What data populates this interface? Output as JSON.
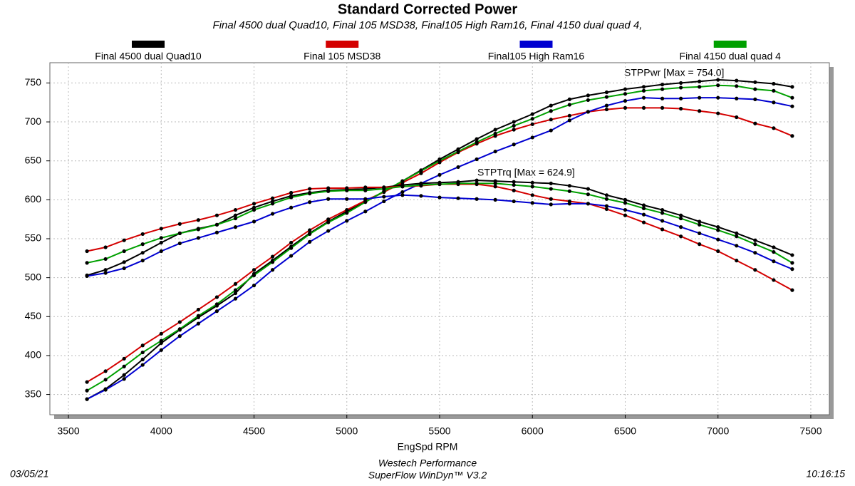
{
  "chart_data": {
    "type": "line",
    "title": "Standard Corrected Power",
    "subtitle": "Final 4500 dual Quad10, Final 105 MSD38, Final105 High Ram16, Final 4150 dual quad 4,",
    "x_label": "EngSpd RPM",
    "annotations": [
      "STPPwr [Max = 754.0]",
      "STPTrq [Max = 624.9]"
    ],
    "footer": {
      "left": "03/05/21",
      "center": [
        "Westech Performance",
        "SuperFlow WinDyn™ V3.2"
      ],
      "right": "10:16:15"
    },
    "grid": true,
    "xlim": [
      3400,
      7600
    ],
    "xticks": [
      3500,
      4000,
      4500,
      5000,
      5500,
      6000,
      6500,
      7000,
      7500
    ],
    "ylim": [
      324,
      776
    ],
    "yticks": [
      350,
      400,
      450,
      500,
      550,
      600,
      650,
      700,
      750
    ],
    "x": [
      3600,
      3700,
      3800,
      3900,
      4000,
      4100,
      4200,
      4300,
      4400,
      4500,
      4600,
      4700,
      4800,
      4900,
      5000,
      5100,
      5200,
      5300,
      5400,
      5500,
      5600,
      5700,
      5800,
      5900,
      6000,
      6100,
      6200,
      6300,
      6400,
      6500,
      6600,
      6700,
      6800,
      6900,
      7000,
      7100,
      7200,
      7300,
      7400
    ],
    "series": [
      {
        "name": "Final 4500 dual Quad10",
        "color": "#000000",
        "power": [
          344,
          357,
          375,
          395,
          416,
          433,
          449,
          464,
          480,
          505,
          522,
          540,
          557,
          572,
          585,
          598,
          610,
          624,
          638,
          652,
          665,
          678,
          690,
          700,
          710,
          721,
          729,
          734,
          738,
          742,
          745,
          748,
          750,
          752,
          754,
          753,
          751,
          749,
          745
        ],
        "torque": [
          503,
          510,
          520,
          532,
          545,
          557,
          563,
          568,
          580,
          590,
          598,
          605,
          609,
          612,
          613,
          614,
          616,
          619,
          621,
          622,
          623,
          624.9,
          624,
          623,
          622,
          621,
          618,
          614,
          606,
          600,
          593,
          587,
          580,
          572,
          565,
          557,
          548,
          539,
          529
        ]
      },
      {
        "name": "Final 105 MSD38",
        "color": "#d40000",
        "power": [
          366,
          380,
          396,
          413,
          428,
          443,
          459,
          475,
          492,
          510,
          527,
          545,
          561,
          575,
          587,
          599,
          610,
          622,
          634,
          648,
          661,
          672,
          682,
          690,
          697,
          703,
          708,
          713,
          716,
          718,
          718,
          718,
          717,
          714,
          711,
          706,
          698,
          692,
          682
        ],
        "torque": [
          534,
          539,
          548,
          556,
          563,
          569,
          574,
          580,
          587,
          595,
          602,
          609,
          614,
          615,
          615,
          616,
          616,
          617,
          618,
          620,
          620,
          620,
          617,
          612,
          606,
          601,
          598,
          595,
          588,
          580,
          571,
          562,
          553,
          543,
          534,
          522,
          510,
          497,
          484
        ]
      },
      {
        "name": "Final105 High Ram16",
        "color": "#0000d0",
        "power": [
          344,
          356,
          370,
          388,
          407,
          425,
          441,
          457,
          473,
          490,
          510,
          528,
          546,
          560,
          573,
          585,
          598,
          610,
          621,
          632,
          642,
          652,
          662,
          671,
          680,
          689,
          702,
          713,
          721,
          727,
          731,
          730,
          730,
          731,
          731,
          730,
          729,
          725,
          720
        ],
        "torque": [
          502,
          506,
          512,
          522,
          534,
          544,
          551,
          558,
          565,
          572,
          582,
          590,
          597,
          601,
          601,
          601,
          604,
          606,
          605,
          603,
          602,
          601,
          600,
          598,
          596,
          594,
          595,
          595,
          592,
          587,
          581,
          573,
          565,
          557,
          549,
          541,
          532,
          521,
          511
        ]
      },
      {
        "name": "Final 4150 dual quad 4",
        "color": "#00a000",
        "power": [
          355,
          369,
          386,
          404,
          419,
          434,
          451,
          466,
          484,
          503,
          520,
          538,
          556,
          571,
          583,
          597,
          611,
          624,
          637,
          650,
          662,
          674,
          685,
          695,
          704,
          714,
          722,
          728,
          732,
          736,
          740,
          742,
          744,
          745,
          747,
          746,
          742,
          740,
          731
        ],
        "torque": [
          519,
          524,
          534,
          543,
          551,
          557,
          562,
          568,
          576,
          587,
          595,
          603,
          608,
          611,
          612,
          612,
          614,
          617,
          619,
          620,
          621,
          621,
          621,
          619,
          617,
          614,
          611,
          607,
          601,
          596,
          589,
          583,
          576,
          568,
          561,
          553,
          543,
          533,
          519
        ]
      }
    ]
  }
}
